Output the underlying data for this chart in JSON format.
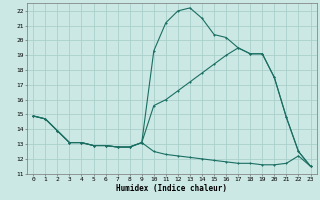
{
  "title": "",
  "xlabel": "Humidex (Indice chaleur)",
  "ylabel": "",
  "bg_color": "#cce8e4",
  "grid_color": "#aacfcb",
  "line_color": "#1a6e62",
  "xlim": [
    -0.5,
    23.5
  ],
  "ylim": [
    11,
    22.5
  ],
  "yticks": [
    11,
    12,
    13,
    14,
    15,
    16,
    17,
    18,
    19,
    20,
    21,
    22
  ],
  "xticks": [
    0,
    1,
    2,
    3,
    4,
    5,
    6,
    7,
    8,
    9,
    10,
    11,
    12,
    13,
    14,
    15,
    16,
    17,
    18,
    19,
    20,
    21,
    22,
    23
  ],
  "line1_y": [
    14.9,
    14.7,
    13.9,
    13.1,
    13.1,
    12.9,
    12.9,
    12.8,
    12.8,
    13.1,
    12.5,
    12.3,
    12.2,
    12.1,
    12.0,
    11.9,
    11.8,
    11.7,
    11.7,
    11.6,
    11.6,
    11.7,
    12.2,
    11.5
  ],
  "line2_y": [
    14.9,
    14.7,
    13.9,
    13.1,
    13.1,
    12.9,
    12.9,
    12.8,
    12.8,
    13.1,
    15.6,
    16.0,
    16.6,
    17.2,
    17.8,
    18.4,
    19.0,
    19.5,
    19.1,
    19.1,
    17.5,
    14.8,
    12.5,
    11.5
  ],
  "line3_y": [
    14.9,
    14.7,
    13.9,
    13.1,
    13.1,
    12.9,
    12.9,
    12.8,
    12.8,
    13.1,
    19.3,
    21.2,
    22.0,
    22.2,
    21.5,
    20.4,
    20.2,
    19.5,
    19.1,
    19.1,
    17.5,
    14.8,
    12.5,
    11.5
  ]
}
